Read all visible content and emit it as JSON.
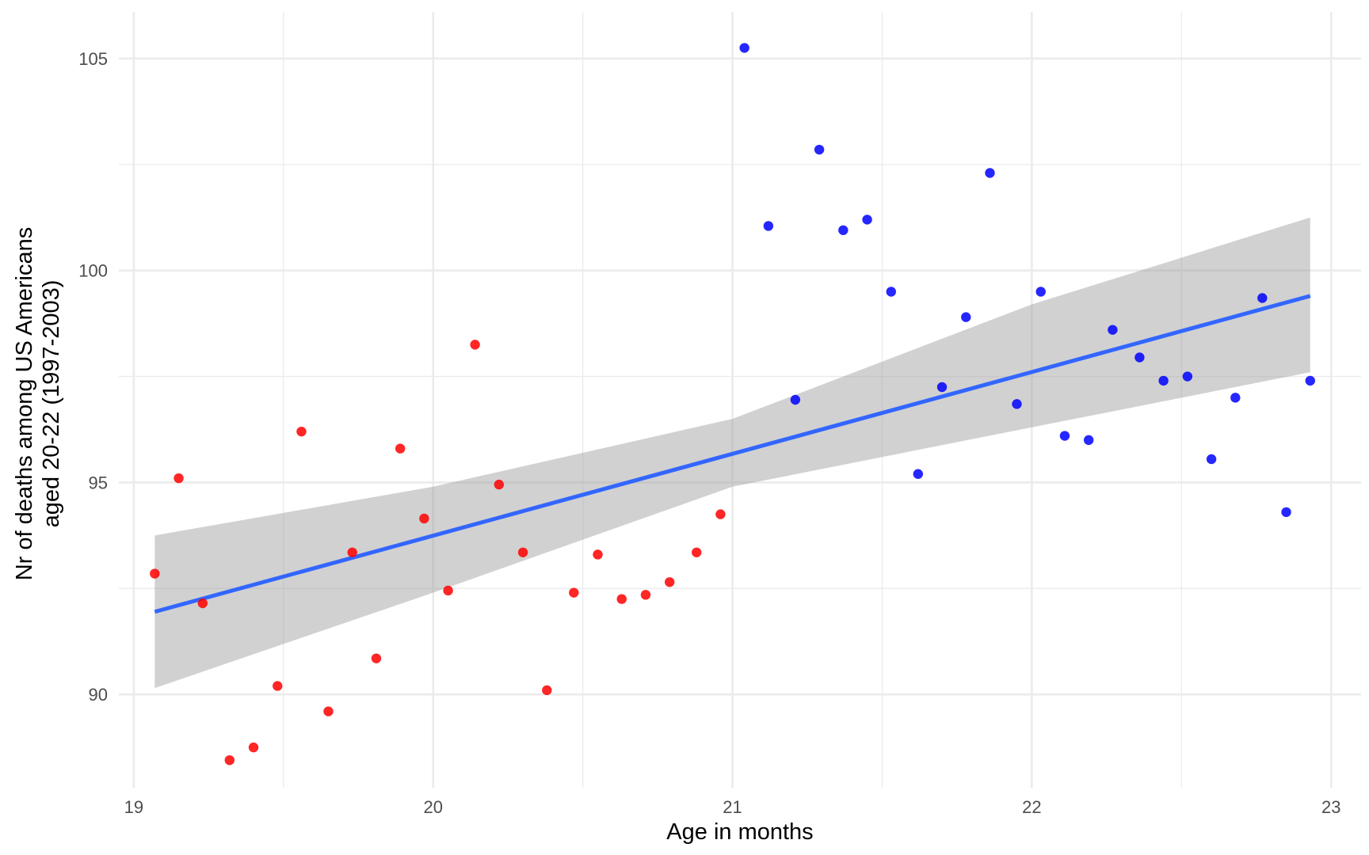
{
  "chart_data": {
    "type": "scatter",
    "title": "",
    "xlabel": "Age in months",
    "ylabel_lines": [
      "Nr of deaths among US Americans",
      "aged 20-22 (1997-2003)"
    ],
    "xlim": [
      18.95,
      23.1
    ],
    "ylim": [
      87.8,
      106.1
    ],
    "x_ticks": [
      19,
      20,
      21,
      22,
      23
    ],
    "x_tick_labels": [
      "19",
      "20",
      "21",
      "22",
      "23"
    ],
    "x_minor_ticks": [
      19.5,
      20.5,
      21.5,
      22.5
    ],
    "y_ticks": [
      90,
      95,
      100,
      105
    ],
    "y_tick_labels": [
      "90",
      "95",
      "100",
      "105"
    ],
    "y_minor_ticks": [
      92.5,
      97.5,
      102.5
    ],
    "grid": true,
    "legend": "none",
    "colors": {
      "red_points": "#ff0000",
      "blue_points": "#0000ff",
      "fit_line": "#3366ff",
      "ci_band": "#999999",
      "grid": "#ebebeb"
    },
    "series": [
      {
        "color": "#ff0000",
        "x": [
          19.07,
          19.15,
          19.23,
          19.32,
          19.4,
          19.48,
          19.56,
          19.65,
          19.73,
          19.81,
          19.89,
          19.97,
          20.05,
          20.14,
          20.22,
          20.3,
          20.38,
          20.47,
          20.55,
          20.63,
          20.71,
          20.79,
          20.88,
          20.96
        ],
        "y": [
          92.85,
          95.1,
          92.15,
          88.45,
          88.75,
          90.2,
          96.2,
          89.6,
          93.35,
          90.85,
          95.8,
          94.15,
          92.45,
          98.25,
          94.95,
          93.35,
          90.1,
          92.4,
          93.3,
          92.25,
          92.35,
          92.65,
          93.35,
          94.25
        ]
      },
      {
        "color": "#0000ff",
        "x": [
          21.04,
          21.12,
          21.21,
          21.29,
          21.37,
          21.45,
          21.53,
          21.62,
          21.7,
          21.78,
          21.86,
          21.95,
          22.03,
          22.11,
          22.19,
          22.27,
          22.36,
          22.44,
          22.52,
          22.6,
          22.68,
          22.77,
          22.85,
          22.93
        ],
        "y": [
          105.25,
          101.05,
          96.95,
          102.85,
          100.95,
          101.2,
          99.5,
          95.2,
          97.25,
          98.9,
          102.3,
          96.85,
          99.5,
          96.1,
          96.0,
          98.6,
          97.95,
          97.4,
          97.5,
          95.55,
          97.0,
          99.35,
          94.3,
          97.4
        ]
      }
    ],
    "fit": {
      "line": [
        [
          19.07,
          91.95
        ],
        [
          22.93,
          99.4
        ]
      ],
      "ci_upper": [
        [
          19.07,
          93.75
        ],
        [
          20.0,
          94.9
        ],
        [
          21.0,
          96.5
        ],
        [
          22.0,
          99.2
        ],
        [
          22.93,
          101.25
        ]
      ],
      "ci_lower": [
        [
          19.07,
          90.15
        ],
        [
          20.0,
          92.4
        ],
        [
          21.0,
          94.9
        ],
        [
          22.0,
          96.3
        ],
        [
          22.93,
          97.6
        ]
      ]
    }
  }
}
